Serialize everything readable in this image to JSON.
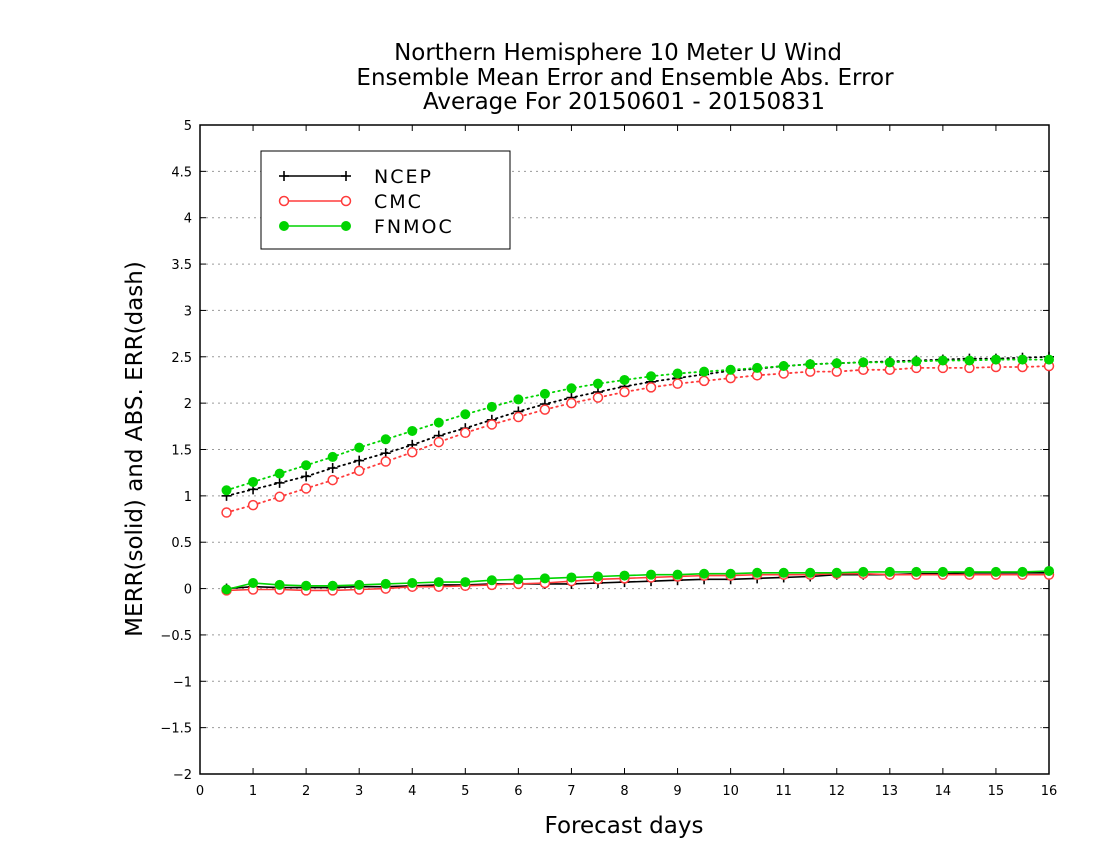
{
  "chart_data": {
    "type": "line",
    "title": [
      "Northern Hemisphere 10 Meter U Wind",
      "Ensemble Mean Error and Ensemble Abs. Error",
      "Average For 20150601 - 20150831"
    ],
    "xlabel": "Forecast days",
    "ylabel": "MERR(solid) and ABS. ERR(dash)",
    "xlim": [
      0,
      16
    ],
    "ylim": [
      -2,
      5
    ],
    "xticks": [
      0,
      1,
      2,
      3,
      4,
      5,
      6,
      7,
      8,
      9,
      10,
      11,
      12,
      13,
      14,
      15,
      16
    ],
    "yticks": [
      -2,
      -1.5,
      -1,
      -0.5,
      0,
      0.5,
      1,
      1.5,
      2,
      2.5,
      3,
      3.5,
      4,
      4.5,
      5
    ],
    "grid": "horizontal dotted",
    "legend_position": "top-left",
    "x": [
      0.5,
      1,
      1.5,
      2,
      2.5,
      3,
      3.5,
      4,
      4.5,
      5,
      5.5,
      6,
      6.5,
      7,
      7.5,
      8,
      8.5,
      9,
      9.5,
      10,
      10.5,
      11,
      11.5,
      12,
      12.5,
      13,
      13.5,
      14,
      14.5,
      15,
      15.5,
      16
    ],
    "series": [
      {
        "name": "NCEP",
        "color": "#000000",
        "marker": "plus",
        "merr": [
          0.0,
          0.02,
          0.01,
          0.01,
          0.01,
          0.02,
          0.02,
          0.03,
          0.04,
          0.04,
          0.05,
          0.05,
          0.05,
          0.05,
          0.06,
          0.07,
          0.08,
          0.09,
          0.1,
          0.1,
          0.11,
          0.12,
          0.13,
          0.15,
          0.15,
          0.15,
          0.16,
          0.16,
          0.17,
          0.17,
          0.17,
          0.17
        ],
        "abs_err": [
          1.0,
          1.07,
          1.14,
          1.21,
          1.3,
          1.38,
          1.46,
          1.55,
          1.65,
          1.73,
          1.82,
          1.91,
          1.99,
          2.06,
          2.12,
          2.18,
          2.23,
          2.27,
          2.31,
          2.35,
          2.37,
          2.4,
          2.42,
          2.43,
          2.44,
          2.45,
          2.46,
          2.47,
          2.48,
          2.48,
          2.49,
          2.5
        ]
      },
      {
        "name": "CMC",
        "color": "#ff3b3b",
        "marker": "open-circle",
        "merr": [
          -0.02,
          -0.01,
          -0.01,
          -0.02,
          -0.02,
          -0.01,
          0.0,
          0.02,
          0.02,
          0.03,
          0.04,
          0.05,
          0.06,
          0.08,
          0.1,
          0.11,
          0.12,
          0.13,
          0.14,
          0.14,
          0.15,
          0.15,
          0.15,
          0.16,
          0.16,
          0.15,
          0.15,
          0.15,
          0.15,
          0.15,
          0.15,
          0.15
        ],
        "abs_err": [
          0.82,
          0.9,
          0.99,
          1.08,
          1.17,
          1.27,
          1.37,
          1.47,
          1.58,
          1.68,
          1.77,
          1.85,
          1.93,
          2.0,
          2.06,
          2.12,
          2.17,
          2.21,
          2.24,
          2.27,
          2.3,
          2.32,
          2.34,
          2.34,
          2.36,
          2.36,
          2.38,
          2.38,
          2.38,
          2.39,
          2.39,
          2.4
        ]
      },
      {
        "name": "FNMOC",
        "color": "#00d400",
        "marker": "filled-circle",
        "merr": [
          -0.01,
          0.06,
          0.04,
          0.03,
          0.03,
          0.04,
          0.05,
          0.06,
          0.07,
          0.07,
          0.09,
          0.1,
          0.11,
          0.12,
          0.13,
          0.14,
          0.15,
          0.15,
          0.16,
          0.16,
          0.17,
          0.17,
          0.17,
          0.17,
          0.18,
          0.18,
          0.18,
          0.18,
          0.18,
          0.18,
          0.18,
          0.19
        ],
        "abs_err": [
          1.06,
          1.15,
          1.24,
          1.33,
          1.42,
          1.52,
          1.61,
          1.7,
          1.79,
          1.88,
          1.96,
          2.04,
          2.1,
          2.16,
          2.21,
          2.25,
          2.29,
          2.32,
          2.34,
          2.36,
          2.38,
          2.4,
          2.42,
          2.43,
          2.44,
          2.44,
          2.45,
          2.46,
          2.46,
          2.47,
          2.47,
          2.47
        ]
      }
    ]
  }
}
